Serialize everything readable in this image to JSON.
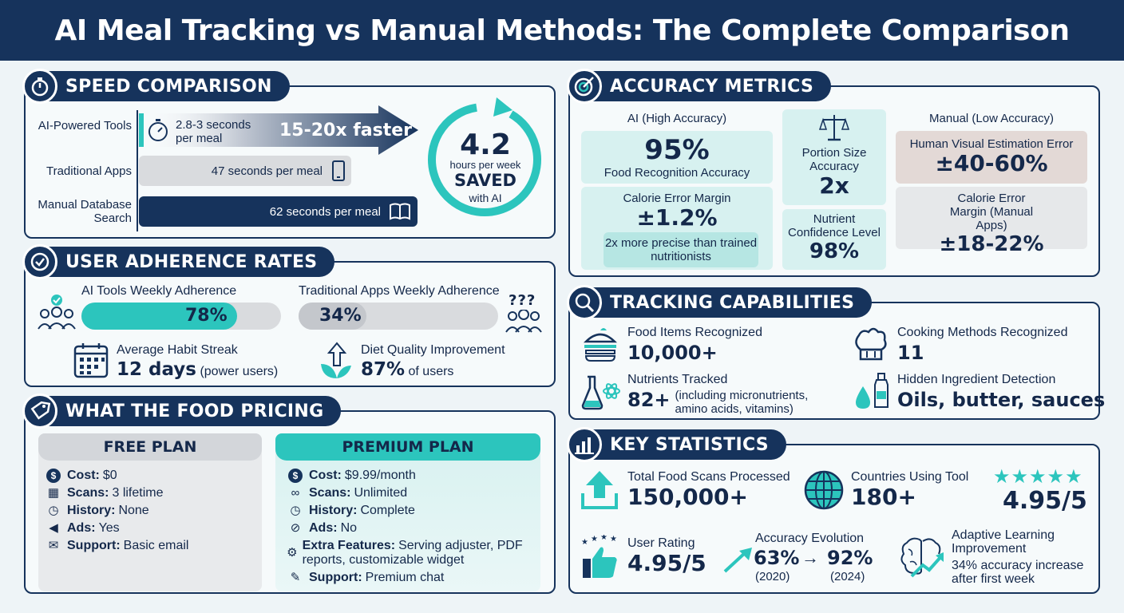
{
  "title": "AI Meal Tracking vs Manual Methods: The Complete Comparison",
  "speed": {
    "heading": "SPEED COMPARISON",
    "rows": [
      {
        "label": "AI-Powered Tools",
        "value": "2.8-3 seconds per meal"
      },
      {
        "label": "Traditional Apps",
        "value": "47 seconds per meal"
      },
      {
        "label": "Manual Database Search",
        "value": "62 seconds per meal"
      }
    ],
    "faster": "15-20x faster",
    "saved_value": "4.2",
    "saved_unit": "hours per week",
    "saved_word": "SAVED",
    "saved_suffix": "with AI"
  },
  "adherence": {
    "heading": "USER ADHERENCE RATES",
    "ai_label": "AI Tools Weekly Adherence",
    "ai_value": "78%",
    "ai_fraction": 0.78,
    "trad_label": "Traditional Apps Weekly Adherence",
    "trad_value": "34%",
    "trad_fraction": 0.34,
    "streak_label": "Average Habit Streak",
    "streak_value": "12 days",
    "streak_note": "(power users)",
    "diet_label": "Diet Quality Improvement",
    "diet_value": "87%",
    "diet_note": "of users",
    "qmarks": "???"
  },
  "pricing": {
    "heading": "WHAT THE FOOD PRICING",
    "free": {
      "title": "FREE PLAN",
      "rows": [
        {
          "icon": "$",
          "k": "Cost:",
          "v": "$0"
        },
        {
          "icon": "▦",
          "k": "Scans:",
          "v": "3 lifetime"
        },
        {
          "icon": "◷",
          "k": "History:",
          "v": "None"
        },
        {
          "icon": "◀",
          "k": "Ads:",
          "v": "Yes"
        },
        {
          "icon": "✉",
          "k": "Support:",
          "v": "Basic email"
        }
      ]
    },
    "premium": {
      "title": "PREMIUM PLAN",
      "rows": [
        {
          "icon": "$",
          "k": "Cost:",
          "v": "$9.99/month"
        },
        {
          "icon": "∞",
          "k": "Scans:",
          "v": "Unlimited"
        },
        {
          "icon": "◷",
          "k": "History:",
          "v": "Complete"
        },
        {
          "icon": "⊘",
          "k": "Ads:",
          "v": "No"
        },
        {
          "icon": "⚙",
          "k": "Extra Features:",
          "v": "Serving adjuster, PDF reports, customizable widget"
        },
        {
          "icon": "✎",
          "k": "Support:",
          "v": "Premium chat"
        }
      ]
    }
  },
  "accuracy": {
    "heading": "ACCURACY METRICS",
    "ai_header": "AI (High Accuracy)",
    "ai_rec_value": "95%",
    "ai_rec_label": "Food Recognition Accuracy",
    "ai_cal_label": "Calorie Error Margin",
    "ai_cal_value": "±1.2%",
    "ai_note": "2x more precise than trained nutritionists",
    "portion_label": "Portion Size Accuracy",
    "portion_value": "2x",
    "nutrient_label": "Nutrient Confidence Level",
    "nutrient_value": "98%",
    "manual_header": "Manual (Low Accuracy)",
    "manual_vis_label": "Human Visual Estimation Error",
    "manual_vis_value": "±40-60%",
    "manual_cal_label": "Calorie Error Margin (Manual Apps)",
    "manual_cal_value": "±18-22%"
  },
  "tracking": {
    "heading": "TRACKING CAPABILITIES",
    "food_label": "Food Items Recognized",
    "food_value": "10,000+",
    "cook_label": "Cooking Methods Recognized",
    "cook_value": "11",
    "nutr_label": "Nutrients Tracked",
    "nutr_value": "82+",
    "nutr_note": "(including micronutrients, amino acids, vitamins)",
    "hidden_label": "Hidden Ingredient Detection",
    "hidden_value": "Oils, butter, sauces"
  },
  "stats": {
    "heading": "KEY STATISTICS",
    "scans_label": "Total Food Scans Processed",
    "scans_value": "150,000+",
    "countries_label": "Countries Using Tool",
    "countries_value": "180+",
    "stars_rating": "4.95/5",
    "rating_label": "User Rating",
    "rating_value": "4.95/5",
    "evo_label": "Accuracy Evolution",
    "evo_from": "63%",
    "evo_to": "92%",
    "evo_from_year": "(2020)",
    "evo_to_year": "(2024)",
    "adaptive_label": "Adaptive Learning Improvement",
    "adaptive_note": "34% accuracy increase after first week"
  },
  "colors": {
    "navy": "#16335c",
    "teal": "#2cc5bd",
    "gray": "#d9dbde",
    "manual": "#e3d9d6"
  }
}
